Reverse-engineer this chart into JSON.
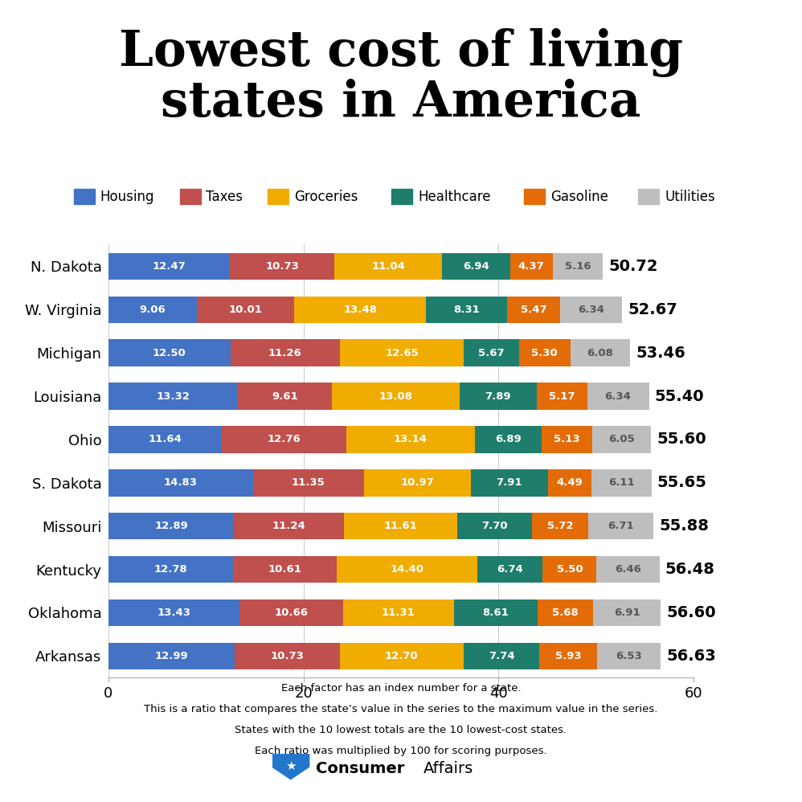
{
  "title": "Lowest cost of living\nstates in America",
  "states": [
    "N. Dakota",
    "W. Virginia",
    "Michigan",
    "Louisiana",
    "Ohio",
    "S. Dakota",
    "Missouri",
    "Kentucky",
    "Oklahoma",
    "Arkansas"
  ],
  "totals": [
    "50.72",
    "52.67",
    "53.46",
    "55.40",
    "55.60",
    "55.65",
    "55.88",
    "56.48",
    "56.60",
    "56.63"
  ],
  "categories": [
    "Housing",
    "Taxes",
    "Groceries",
    "Healthcare",
    "Gasoline",
    "Utilities"
  ],
  "colors": [
    "#4472C4",
    "#C0504D",
    "#F0AC00",
    "#1F7D6B",
    "#E36C09",
    "#BEBEBE"
  ],
  "data": [
    [
      "12.47",
      "10.73",
      "11.04",
      "6.94",
      "4.37",
      "5.16"
    ],
    [
      "9.06",
      "10.01",
      "13.48",
      "8.31",
      "5.47",
      "6.34"
    ],
    [
      "12.50",
      "11.26",
      "12.65",
      "5.67",
      "5.30",
      "6.08"
    ],
    [
      "13.32",
      "9.61",
      "13.08",
      "7.89",
      "5.17",
      "6.34"
    ],
    [
      "11.64",
      "12.76",
      "13.14",
      "6.89",
      "5.13",
      "6.05"
    ],
    [
      "14.83",
      "11.35",
      "10.97",
      "7.91",
      "4.49",
      "6.11"
    ],
    [
      "12.89",
      "11.24",
      "11.61",
      "7.70",
      "5.72",
      "6.71"
    ],
    [
      "12.78",
      "10.61",
      "14.40",
      "6.74",
      "5.50",
      "6.46"
    ],
    [
      "13.43",
      "10.66",
      "11.31",
      "8.61",
      "5.68",
      "6.91"
    ],
    [
      "12.99",
      "10.73",
      "12.70",
      "7.74",
      "5.93",
      "6.53"
    ]
  ],
  "xlim": [
    0,
    60
  ],
  "xticks": [
    0,
    20,
    40,
    60
  ],
  "footnote_lines": [
    "Each factor has an index number for a state.",
    "This is a ratio that compares the state’s value in the series to the maximum value in the series.",
    "States with the 10 lowest totals are the 10 lowest-cost states.",
    "Each ratio was multiplied by 100 for scoring purposes."
  ],
  "background_color": "#FFFFFF",
  "bar_height": 0.62,
  "title_fontsize": 44,
  "tick_fontsize": 13,
  "state_fontsize": 13,
  "total_fontsize": 14,
  "bar_label_fontsize": 9.5,
  "legend_fontsize": 12
}
